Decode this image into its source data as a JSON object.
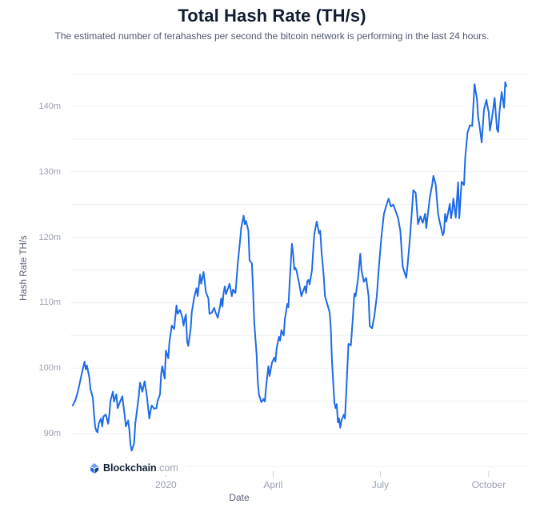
{
  "header": {
    "title": "Total Hash Rate (TH/s)",
    "subtitle": "The estimated number of terahashes per second the bitcoin network is performing in the last 24 hours."
  },
  "branding": {
    "logo_bold": "Blockchain",
    "logo_suffix": ".com"
  },
  "colors": {
    "line": "#1e6be6",
    "title": "#121d33",
    "subtitle": "#4f586c",
    "tick_label": "#9ba1b0",
    "axis_title": "#5a6175",
    "gridline": "#eef0f4",
    "tick_mark": "#ccd0da"
  },
  "chart_data": {
    "type": "line",
    "title": "Total Hash Rate (TH/s)",
    "xlabel": "Date",
    "ylabel": "Hash Rate TH/s",
    "unit": "m = millions of terahashes per second",
    "grid": "horizontal-only",
    "legend": "none",
    "ylim": [
      85,
      146
    ],
    "x_range": [
      "2019-10-14",
      "2020-10-16"
    ],
    "grid_values": [
      85,
      90,
      95,
      100,
      105,
      110,
      115,
      120,
      125,
      130,
      135,
      140,
      145
    ],
    "y_ticks": [
      {
        "value": 90,
        "label": "90m"
      },
      {
        "value": 100,
        "label": "100m"
      },
      {
        "value": 110,
        "label": "110m"
      },
      {
        "value": 120,
        "label": "120m"
      },
      {
        "value": 130,
        "label": "130m"
      },
      {
        "value": 140,
        "label": "140m"
      }
    ],
    "x_ticks": [
      {
        "date": "2020-01-01",
        "label": "2020"
      },
      {
        "date": "2020-04-01",
        "label": "April"
      },
      {
        "date": "2020-07-01",
        "label": "July"
      },
      {
        "date": "2020-10-01",
        "label": "October"
      }
    ],
    "series": [
      {
        "name": "Total Hash Rate",
        "color": "#1e6be6",
        "points": [
          [
            "2019-10-14",
            94.3
          ],
          [
            "2019-10-16",
            95.0
          ],
          [
            "2019-10-18",
            96.2
          ],
          [
            "2019-10-20",
            97.8
          ],
          [
            "2019-10-22",
            99.5
          ],
          [
            "2019-10-24",
            101.0
          ],
          [
            "2019-10-25",
            99.8
          ],
          [
            "2019-10-26",
            100.4
          ],
          [
            "2019-10-28",
            98.6
          ],
          [
            "2019-10-29",
            96.8
          ],
          [
            "2019-10-31",
            95.5
          ],
          [
            "2019-11-01",
            93.0
          ],
          [
            "2019-11-02",
            91.0
          ],
          [
            "2019-11-03",
            90.4
          ],
          [
            "2019-11-04",
            90.2
          ],
          [
            "2019-11-05",
            91.5
          ],
          [
            "2019-11-07",
            92.3
          ],
          [
            "2019-11-08",
            91.1
          ],
          [
            "2019-11-09",
            92.6
          ],
          [
            "2019-11-11",
            92.9
          ],
          [
            "2019-11-13",
            91.5
          ],
          [
            "2019-11-14",
            93.0
          ],
          [
            "2019-11-15",
            95.0
          ],
          [
            "2019-11-17",
            96.4
          ],
          [
            "2019-11-18",
            94.9
          ],
          [
            "2019-11-20",
            96.0
          ],
          [
            "2019-11-21",
            93.9
          ],
          [
            "2019-11-23",
            94.8
          ],
          [
            "2019-11-25",
            95.7
          ],
          [
            "2019-11-27",
            92.8
          ],
          [
            "2019-11-28",
            91.1
          ],
          [
            "2019-11-30",
            92.0
          ],
          [
            "2019-12-01",
            90.5
          ],
          [
            "2019-12-02",
            88.2
          ],
          [
            "2019-12-03",
            87.4
          ],
          [
            "2019-12-05",
            88.5
          ],
          [
            "2019-12-06",
            91.5
          ],
          [
            "2019-12-08",
            94.3
          ],
          [
            "2019-12-09",
            95.8
          ],
          [
            "2019-12-10",
            97.8
          ],
          [
            "2019-12-12",
            96.4
          ],
          [
            "2019-12-14",
            98.0
          ],
          [
            "2019-12-16",
            95.5
          ],
          [
            "2019-12-18",
            92.3
          ],
          [
            "2019-12-19",
            93.5
          ],
          [
            "2019-12-20",
            94.3
          ],
          [
            "2019-12-22",
            93.8
          ],
          [
            "2019-12-24",
            93.9
          ],
          [
            "2019-12-25",
            95.0
          ],
          [
            "2019-12-27",
            96.0
          ],
          [
            "2019-12-28",
            99.2
          ],
          [
            "2019-12-29",
            100.3
          ],
          [
            "2019-12-31",
            98.4
          ],
          [
            "2020-01-01",
            102.7
          ],
          [
            "2020-01-03",
            101.5
          ],
          [
            "2020-01-04",
            104.0
          ],
          [
            "2020-01-06",
            106.5
          ],
          [
            "2020-01-08",
            106.0
          ],
          [
            "2020-01-10",
            109.6
          ],
          [
            "2020-01-11",
            108.3
          ],
          [
            "2020-01-13",
            108.9
          ],
          [
            "2020-01-15",
            107.7
          ],
          [
            "2020-01-16",
            106.5
          ],
          [
            "2020-01-17",
            107.5
          ],
          [
            "2020-01-18",
            108.2
          ],
          [
            "2020-01-19",
            104.1
          ],
          [
            "2020-01-20",
            103.4
          ],
          [
            "2020-01-22",
            106.0
          ],
          [
            "2020-01-23",
            108.6
          ],
          [
            "2020-01-25",
            110.8
          ],
          [
            "2020-01-27",
            112.2
          ],
          [
            "2020-01-28",
            111.0
          ],
          [
            "2020-01-30",
            114.3
          ],
          [
            "2020-01-31",
            112.9
          ],
          [
            "2020-02-02",
            114.7
          ],
          [
            "2020-02-04",
            111.6
          ],
          [
            "2020-02-06",
            110.7
          ],
          [
            "2020-02-07",
            108.3
          ],
          [
            "2020-02-09",
            108.5
          ],
          [
            "2020-02-11",
            109.2
          ],
          [
            "2020-02-12",
            108.6
          ],
          [
            "2020-02-14",
            107.7
          ],
          [
            "2020-02-16",
            109.5
          ],
          [
            "2020-02-17",
            110.7
          ],
          [
            "2020-02-18",
            109.4
          ],
          [
            "2020-02-19",
            111.5
          ],
          [
            "2020-02-20",
            112.5
          ],
          [
            "2020-02-21",
            111.3
          ],
          [
            "2020-02-23",
            112.3
          ],
          [
            "2020-02-24",
            112.9
          ],
          [
            "2020-02-26",
            111.0
          ],
          [
            "2020-02-27",
            112.0
          ],
          [
            "2020-02-29",
            111.5
          ],
          [
            "2020-03-01",
            113.5
          ],
          [
            "2020-03-02",
            116.0
          ],
          [
            "2020-03-04",
            119.5
          ],
          [
            "2020-03-05",
            121.5
          ],
          [
            "2020-03-07",
            123.3
          ],
          [
            "2020-03-08",
            122.0
          ],
          [
            "2020-03-09",
            122.5
          ],
          [
            "2020-03-11",
            121.0
          ],
          [
            "2020-03-12",
            116.5
          ],
          [
            "2020-03-14",
            116.0
          ],
          [
            "2020-03-15",
            112.0
          ],
          [
            "2020-03-16",
            107.0
          ],
          [
            "2020-03-18",
            102.0
          ],
          [
            "2020-03-19",
            98.0
          ],
          [
            "2020-03-20",
            96.0
          ],
          [
            "2020-03-22",
            94.8
          ],
          [
            "2020-03-24",
            95.3
          ],
          [
            "2020-03-25",
            94.9
          ],
          [
            "2020-03-26",
            97.0
          ],
          [
            "2020-03-28",
            100.3
          ],
          [
            "2020-03-29",
            98.8
          ],
          [
            "2020-03-31",
            100.8
          ],
          [
            "2020-04-02",
            101.6
          ],
          [
            "2020-04-03",
            101.0
          ],
          [
            "2020-04-04",
            103.0
          ],
          [
            "2020-04-06",
            104.8
          ],
          [
            "2020-04-07",
            104.2
          ],
          [
            "2020-04-08",
            105.8
          ],
          [
            "2020-04-10",
            105.0
          ],
          [
            "2020-04-11",
            107.5
          ],
          [
            "2020-04-13",
            109.8
          ],
          [
            "2020-04-14",
            109.3
          ],
          [
            "2020-04-15",
            113.0
          ],
          [
            "2020-04-17",
            119.0
          ],
          [
            "2020-04-18",
            117.5
          ],
          [
            "2020-04-19",
            115.1
          ],
          [
            "2020-04-20",
            115.3
          ],
          [
            "2020-04-21",
            114.8
          ],
          [
            "2020-04-23",
            113.0
          ],
          [
            "2020-04-24",
            112.0
          ],
          [
            "2020-04-25",
            111.0
          ],
          [
            "2020-04-28",
            112.5
          ],
          [
            "2020-04-29",
            111.5
          ],
          [
            "2020-04-30",
            113.3
          ],
          [
            "2020-05-01",
            113.5
          ],
          [
            "2020-05-02",
            112.8
          ],
          [
            "2020-05-04",
            115.0
          ],
          [
            "2020-05-05",
            118.0
          ],
          [
            "2020-05-06",
            120.5
          ],
          [
            "2020-05-08",
            122.4
          ],
          [
            "2020-05-09",
            121.6
          ],
          [
            "2020-05-10",
            120.6
          ],
          [
            "2020-05-11",
            121.0
          ],
          [
            "2020-05-12",
            118.0
          ],
          [
            "2020-05-14",
            114.0
          ],
          [
            "2020-05-15",
            111.0
          ],
          [
            "2020-05-17",
            109.8
          ],
          [
            "2020-05-19",
            108.5
          ],
          [
            "2020-05-20",
            106.1
          ],
          [
            "2020-05-21",
            101.0
          ],
          [
            "2020-05-23",
            94.7
          ],
          [
            "2020-05-24",
            93.9
          ],
          [
            "2020-05-25",
            94.5
          ],
          [
            "2020-05-26",
            91.7
          ],
          [
            "2020-05-27",
            92.3
          ],
          [
            "2020-05-28",
            90.9
          ],
          [
            "2020-05-29",
            92.0
          ],
          [
            "2020-05-31",
            92.9
          ],
          [
            "2020-06-01",
            92.3
          ],
          [
            "2020-06-02",
            96.0
          ],
          [
            "2020-06-03",
            100.0
          ],
          [
            "2020-06-04",
            103.7
          ],
          [
            "2020-06-06",
            103.5
          ],
          [
            "2020-06-07",
            106.0
          ],
          [
            "2020-06-09",
            111.4
          ],
          [
            "2020-06-10",
            111.0
          ],
          [
            "2020-06-12",
            113.5
          ],
          [
            "2020-06-13",
            115.5
          ],
          [
            "2020-06-14",
            117.5
          ],
          [
            "2020-06-15",
            115.0
          ],
          [
            "2020-06-17",
            113.2
          ],
          [
            "2020-06-19",
            113.8
          ],
          [
            "2020-06-21",
            111.0
          ],
          [
            "2020-06-22",
            106.4
          ],
          [
            "2020-06-24",
            106.1
          ],
          [
            "2020-06-26",
            108.0
          ],
          [
            "2020-06-28",
            111.0
          ],
          [
            "2020-06-30",
            115.9
          ],
          [
            "2020-07-02",
            120.2
          ],
          [
            "2020-07-04",
            123.5
          ],
          [
            "2020-07-06",
            124.8
          ],
          [
            "2020-07-08",
            125.9
          ],
          [
            "2020-07-10",
            124.7
          ],
          [
            "2020-07-12",
            125.0
          ],
          [
            "2020-07-15",
            123.5
          ],
          [
            "2020-07-16",
            123.0
          ],
          [
            "2020-07-18",
            121.0
          ],
          [
            "2020-07-20",
            115.5
          ],
          [
            "2020-07-23",
            113.8
          ],
          [
            "2020-07-24",
            115.5
          ],
          [
            "2020-07-26",
            119.6
          ],
          [
            "2020-07-28",
            124.5
          ],
          [
            "2020-07-29",
            127.2
          ],
          [
            "2020-07-31",
            126.8
          ],
          [
            "2020-08-02",
            122.0
          ],
          [
            "2020-08-04",
            123.2
          ],
          [
            "2020-08-06",
            122.2
          ],
          [
            "2020-08-08",
            123.6
          ],
          [
            "2020-08-09",
            121.4
          ],
          [
            "2020-08-10",
            123.0
          ],
          [
            "2020-08-12",
            126.1
          ],
          [
            "2020-08-14",
            128.0
          ],
          [
            "2020-08-15",
            129.4
          ],
          [
            "2020-08-17",
            128.1
          ],
          [
            "2020-08-19",
            123.6
          ],
          [
            "2020-08-20",
            122.7
          ],
          [
            "2020-08-23",
            120.3
          ],
          [
            "2020-08-24",
            120.8
          ],
          [
            "2020-08-25",
            123.6
          ],
          [
            "2020-08-26",
            122.4
          ],
          [
            "2020-08-29",
            125.1
          ],
          [
            "2020-08-30",
            122.9
          ],
          [
            "2020-08-31",
            124.0
          ],
          [
            "2020-09-01",
            125.9
          ],
          [
            "2020-09-03",
            123.0
          ],
          [
            "2020-09-05",
            128.4
          ],
          [
            "2020-09-06",
            122.9
          ],
          [
            "2020-09-08",
            128.5
          ],
          [
            "2020-09-10",
            128.0
          ],
          [
            "2020-09-11",
            132.1
          ],
          [
            "2020-09-13",
            136.0
          ],
          [
            "2020-09-15",
            137.1
          ],
          [
            "2020-09-17",
            137.0
          ],
          [
            "2020-09-19",
            143.4
          ],
          [
            "2020-09-20",
            142.2
          ],
          [
            "2020-09-21",
            141.2
          ],
          [
            "2020-09-22",
            138.3
          ],
          [
            "2020-09-23",
            137.3
          ],
          [
            "2020-09-25",
            134.5
          ],
          [
            "2020-09-27",
            139.5
          ],
          [
            "2020-09-29",
            141.0
          ],
          [
            "2020-09-30",
            140.0
          ],
          [
            "2020-10-01",
            139.1
          ],
          [
            "2020-10-02",
            136.3
          ],
          [
            "2020-10-04",
            138.5
          ],
          [
            "2020-10-06",
            141.3
          ],
          [
            "2020-10-07",
            139.0
          ],
          [
            "2020-10-08",
            136.5
          ],
          [
            "2020-10-09",
            136.1
          ],
          [
            "2020-10-10",
            139.0
          ],
          [
            "2020-10-12",
            142.2
          ],
          [
            "2020-10-13",
            141.0
          ],
          [
            "2020-10-14",
            139.8
          ],
          [
            "2020-10-15",
            143.7
          ],
          [
            "2020-10-16",
            143.1
          ]
        ]
      }
    ]
  }
}
